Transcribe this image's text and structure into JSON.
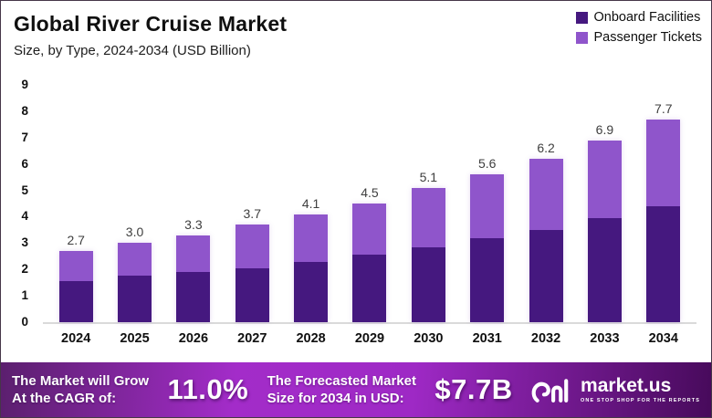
{
  "header": {
    "title": "Global River Cruise Market",
    "subtitle": "Size, by Type, 2024-2034 (USD Billion)"
  },
  "legend": [
    {
      "label": "Onboard Facilities",
      "color": "#45187f"
    },
    {
      "label": "Passenger Tickets",
      "color": "#8f55cb"
    }
  ],
  "chart_data": {
    "type": "bar",
    "stacked": true,
    "title": "Global River Cruise Market",
    "subtitle": "Size, by Type, 2024-2034 (USD Billion)",
    "xlabel": "",
    "ylabel": "",
    "ylim": [
      0,
      9
    ],
    "yticks": [
      0,
      1,
      2,
      3,
      4,
      5,
      6,
      7,
      8,
      9
    ],
    "grid": false,
    "legend_position": "top-right",
    "categories": [
      "2024",
      "2025",
      "2026",
      "2027",
      "2028",
      "2029",
      "2030",
      "2031",
      "2032",
      "2033",
      "2034"
    ],
    "series": [
      {
        "name": "Onboard Facilities",
        "color": "#45187f",
        "values": [
          1.55,
          1.75,
          1.9,
          2.05,
          2.3,
          2.55,
          2.85,
          3.2,
          3.5,
          3.95,
          4.4
        ]
      },
      {
        "name": "Passenger Tickets",
        "color": "#8f55cb",
        "values": [
          1.15,
          1.25,
          1.4,
          1.65,
          1.8,
          1.95,
          2.25,
          2.4,
          2.7,
          2.95,
          3.3
        ]
      }
    ],
    "total_labels": [
      "2.7",
      "3.0",
      "3.3",
      "3.7",
      "4.1",
      "4.5",
      "5.1",
      "5.6",
      "6.2",
      "6.9",
      "7.7"
    ]
  },
  "footer": {
    "cagr_label_line1": "The Market will Grow",
    "cagr_label_line2": "At the CAGR of:",
    "cagr_value": "11.0%",
    "forecast_label_line1": "The Forecasted Market",
    "forecast_label_line2": "Size for 2034 in USD:",
    "forecast_value": "$7.7B",
    "logo_name": "market.us",
    "logo_tagline": "ONE STOP SHOP FOR THE REPORTS"
  }
}
